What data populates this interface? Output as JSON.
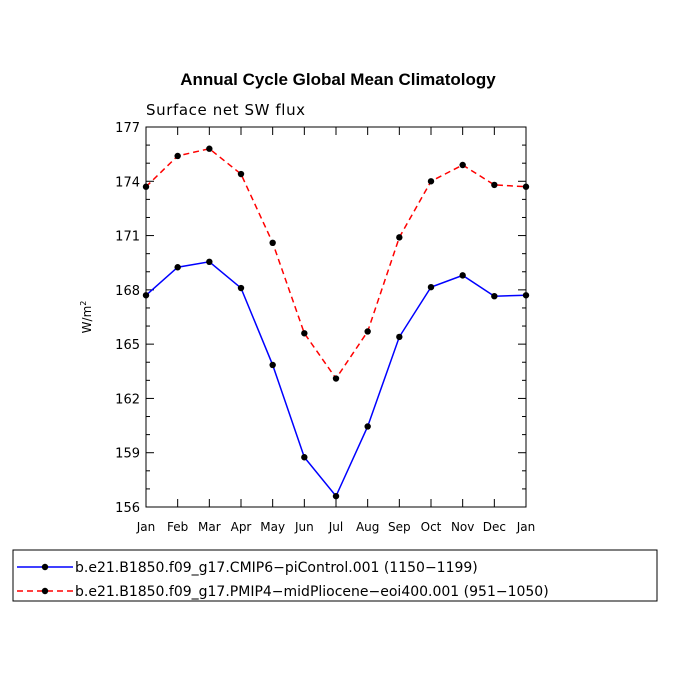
{
  "chart_data": {
    "type": "line",
    "title": "Annual Cycle Global Mean Climatology",
    "subtitle": "Surface net SW flux",
    "xlabel": "",
    "ylabel": "W/m",
    "ylabel_superscript": "2",
    "categories": [
      "Jan",
      "Feb",
      "Mar",
      "Apr",
      "May",
      "Jun",
      "Jul",
      "Aug",
      "Sep",
      "Oct",
      "Nov",
      "Dec",
      "Jan"
    ],
    "yticks": [
      "156",
      "159",
      "162",
      "165",
      "168",
      "171",
      "174",
      "177"
    ],
    "ylim": [
      156,
      177
    ],
    "grid": false,
    "legend_position": "bottom",
    "series": [
      {
        "name": "b.e21.B1850.f09_g17.CMIP6−piControl.001 (1150−1199)",
        "color": "#0000ff",
        "dash": "solid",
        "marker": "circle",
        "values": [
          167.7,
          169.25,
          169.55,
          168.1,
          163.85,
          158.75,
          156.6,
          160.45,
          165.4,
          168.15,
          168.8,
          167.65,
          167.7
        ]
      },
      {
        "name": "b.e21.B1850.f09_g17.PMIP4−midPliocene−eoi400.001 (951−1050)",
        "color": "#ff0000",
        "dash": "dashed",
        "marker": "circle",
        "values": [
          173.7,
          175.4,
          175.8,
          174.4,
          170.6,
          165.6,
          163.1,
          165.7,
          170.9,
          174.0,
          174.9,
          173.8,
          173.7
        ]
      }
    ]
  }
}
